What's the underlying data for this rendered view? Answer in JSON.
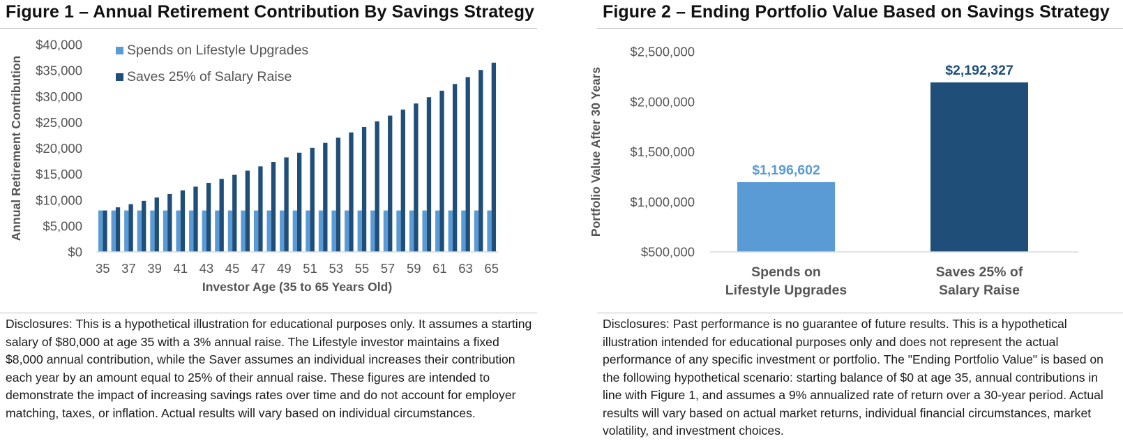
{
  "colors": {
    "light_blue": "#5b9bd5",
    "dark_blue": "#1f4e79",
    "axis_text": "#555555",
    "gridline": "#d9d9d9"
  },
  "figure1": {
    "title": "Figure 1 – Annual Retirement Contribution By Savings Strategy",
    "disclosure": "Disclosures: This is a hypothetical illustration for educational purposes only. It assumes a starting salary of $80,000 at age 35 with a 3% annual raise. The Lifestyle investor maintains a fixed $8,000 annual contribution, while the Saver assumes an individual increases their contribution each year by an amount equal to 25% of their annual raise. These figures are intended to demonstrate the impact of increasing savings rates over time and do not account for employer matching, taxes, or inflation. Actual results will vary based on individual circumstances."
  },
  "figure2": {
    "title": "Figure 2 – Ending Portfolio Value Based on Savings Strategy",
    "disclosure": "Disclosures: Past performance is no guarantee of future results. This is a hypothetical illustration intended for educational purposes only and does not represent the actual performance of any specific investment or portfolio. The \"Ending Portfolio Value\" is based on the following hypothetical scenario: starting balance of $0 at age 35, annual contributions in line with Figure 1, and assumes a 9% annualized rate of return over a 30-year period. Actual results will vary based on actual market returns, individual financial circumstances, market volatility, and investment choices."
  },
  "chart_data": [
    {
      "type": "bar",
      "title": "Figure 1 – Annual Retirement Contribution By Savings Strategy",
      "xlabel": "Investor Age (35 to 65 Years Old)",
      "ylabel": "Annual Retirement Contribution",
      "ylim": [
        0,
        40000
      ],
      "y_ticks": [
        0,
        5000,
        10000,
        15000,
        20000,
        25000,
        30000,
        35000,
        40000
      ],
      "y_tick_labels": [
        "$0",
        "$5,000",
        "$10,000",
        "$15,000",
        "$20,000",
        "$25,000",
        "$30,000",
        "$35,000",
        "$40,000"
      ],
      "grid": false,
      "legend_position": "top-left",
      "categories": [
        "35",
        "36",
        "37",
        "38",
        "39",
        "40",
        "41",
        "42",
        "43",
        "44",
        "45",
        "46",
        "47",
        "48",
        "49",
        "50",
        "51",
        "52",
        "53",
        "54",
        "55",
        "56",
        "57",
        "58",
        "59",
        "60",
        "61",
        "62",
        "63",
        "64",
        "65"
      ],
      "x_tick_labels_shown": [
        "35",
        "37",
        "39",
        "41",
        "43",
        "45",
        "47",
        "49",
        "51",
        "53",
        "55",
        "57",
        "59",
        "61",
        "63",
        "65"
      ],
      "series": [
        {
          "name": "Spends on Lifestyle Upgrades",
          "color": "#5b9bd5",
          "values": [
            8000,
            8000,
            8000,
            8000,
            8000,
            8000,
            8000,
            8000,
            8000,
            8000,
            8000,
            8000,
            8000,
            8000,
            8000,
            8000,
            8000,
            8000,
            8000,
            8000,
            8000,
            8000,
            8000,
            8000,
            8000,
            8000,
            8000,
            8000,
            8000,
            8000,
            8000
          ]
        },
        {
          "name": "Saves 25% of Salary Raise",
          "color": "#1f4e79",
          "values": [
            8000,
            8600,
            9218,
            9855,
            10510,
            11186,
            11881,
            12597,
            13335,
            14094,
            14877,
            15683,
            16513,
            17368,
            18248,
            19155,
            20089,
            21051,
            22042,
            23063,
            24114,
            25197,
            26312,
            27461,
            28644,
            29862,
            31117,
            32410,
            33741,
            35112,
            36525
          ]
        }
      ]
    },
    {
      "type": "bar",
      "title": "Figure 2 – Ending Portfolio Value Based on Savings Strategy",
      "xlabel": "",
      "ylabel": "Portfolio Value After 30 Years",
      "ylim": [
        500000,
        2500000
      ],
      "y_ticks": [
        500000,
        1000000,
        1500000,
        2000000,
        2500000
      ],
      "y_tick_labels": [
        "$500,000",
        "$1,000,000",
        "$1,500,000",
        "$2,000,000",
        "$2,500,000"
      ],
      "grid": false,
      "categories": [
        [
          "Spends on",
          "Lifestyle Upgrades"
        ],
        [
          "Saves 25% of",
          "Salary Raise"
        ]
      ],
      "values": [
        1196602,
        2192327
      ],
      "data_labels": [
        "$1,196,602",
        "$2,192,327"
      ],
      "colors": [
        "#5b9bd5",
        "#1f4e79"
      ]
    }
  ]
}
